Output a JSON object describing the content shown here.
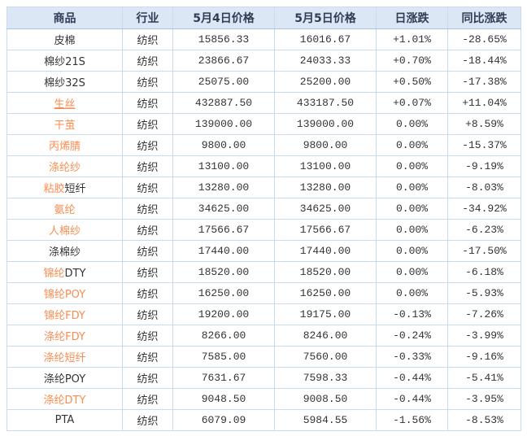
{
  "table": {
    "columns": [
      {
        "label": "商品"
      },
      {
        "label": "行业"
      },
      {
        "label": "5月4日价格"
      },
      {
        "label": "5月5日价格"
      },
      {
        "label": "日涨跌"
      },
      {
        "label": "同比涨跌"
      }
    ],
    "rows": [
      {
        "name_link": "",
        "name_plain": "皮棉",
        "underline": false,
        "industry": "纺织",
        "price_may4": "15856.33",
        "price_may5": "16016.67",
        "day_change": "+1.01%",
        "day_trend": "up",
        "yoy_change": "-28.65%",
        "yoy_trend": "down"
      },
      {
        "name_link": "",
        "name_plain": "棉纱21S",
        "underline": false,
        "industry": "纺织",
        "price_may4": "23866.67",
        "price_may5": "24033.33",
        "day_change": "+0.70%",
        "day_trend": "up",
        "yoy_change": "-18.44%",
        "yoy_trend": "down"
      },
      {
        "name_link": "",
        "name_plain": "棉纱32S",
        "underline": false,
        "industry": "纺织",
        "price_may4": "25075.00",
        "price_may5": "25200.00",
        "day_change": "+0.50%",
        "day_trend": "up",
        "yoy_change": "-17.38%",
        "yoy_trend": "down"
      },
      {
        "name_link": "生丝",
        "name_plain": "",
        "underline": true,
        "industry": "纺织",
        "price_may4": "432887.50",
        "price_may5": "433187.50",
        "day_change": "+0.07%",
        "day_trend": "up",
        "yoy_change": "+11.04%",
        "yoy_trend": "up"
      },
      {
        "name_link": "干茧",
        "name_plain": "",
        "underline": false,
        "industry": "纺织",
        "price_may4": "139000.00",
        "price_may5": "139000.00",
        "day_change": "0.00%",
        "day_trend": "flat",
        "yoy_change": "+8.59%",
        "yoy_trend": "up"
      },
      {
        "name_link": "丙烯腈",
        "name_plain": "",
        "underline": false,
        "industry": "纺织",
        "price_may4": "9800.00",
        "price_may5": "9800.00",
        "day_change": "0.00%",
        "day_trend": "flat",
        "yoy_change": "-15.37%",
        "yoy_trend": "down"
      },
      {
        "name_link": "涤纶纱",
        "name_plain": "",
        "underline": false,
        "industry": "纺织",
        "price_may4": "13100.00",
        "price_may5": "13100.00",
        "day_change": "0.00%",
        "day_trend": "flat",
        "yoy_change": "-9.19%",
        "yoy_trend": "down"
      },
      {
        "name_link": "粘胶",
        "name_plain": "短纤",
        "underline": false,
        "industry": "纺织",
        "price_may4": "13280.00",
        "price_may5": "13280.00",
        "day_change": "0.00%",
        "day_trend": "flat",
        "yoy_change": "-8.03%",
        "yoy_trend": "down"
      },
      {
        "name_link": "氨纶",
        "name_plain": "",
        "underline": false,
        "industry": "纺织",
        "price_may4": "34625.00",
        "price_may5": "34625.00",
        "day_change": "0.00%",
        "day_trend": "flat",
        "yoy_change": "-34.92%",
        "yoy_trend": "down"
      },
      {
        "name_link": "人棉纱",
        "name_plain": "",
        "underline": false,
        "industry": "纺织",
        "price_may4": "17566.67",
        "price_may5": "17566.67",
        "day_change": "0.00%",
        "day_trend": "flat",
        "yoy_change": "-6.23%",
        "yoy_trend": "down"
      },
      {
        "name_link": "",
        "name_plain": "涤棉纱",
        "underline": false,
        "industry": "纺织",
        "price_may4": "17440.00",
        "price_may5": "17440.00",
        "day_change": "0.00%",
        "day_trend": "flat",
        "yoy_change": "-17.50%",
        "yoy_trend": "down"
      },
      {
        "name_link": "锦纶",
        "name_plain": "DTY",
        "underline": false,
        "industry": "纺织",
        "price_may4": "18520.00",
        "price_may5": "18520.00",
        "day_change": "0.00%",
        "day_trend": "flat",
        "yoy_change": "-6.18%",
        "yoy_trend": "down"
      },
      {
        "name_link": "锦纶POY",
        "name_plain": "",
        "underline": false,
        "industry": "纺织",
        "price_may4": "16250.00",
        "price_may5": "16250.00",
        "day_change": "0.00%",
        "day_trend": "flat",
        "yoy_change": "-5.93%",
        "yoy_trend": "down"
      },
      {
        "name_link": "锦纶FDY",
        "name_plain": "",
        "underline": false,
        "industry": "纺织",
        "price_may4": "19200.00",
        "price_may5": "19175.00",
        "day_change": "-0.13%",
        "day_trend": "down",
        "yoy_change": "-7.26%",
        "yoy_trend": "down"
      },
      {
        "name_link": "涤纶FDY",
        "name_plain": "",
        "underline": false,
        "industry": "纺织",
        "price_may4": "8266.00",
        "price_may5": "8246.00",
        "day_change": "-0.24%",
        "day_trend": "down",
        "yoy_change": "-3.99%",
        "yoy_trend": "down"
      },
      {
        "name_link": "涤纶短纤",
        "name_plain": "",
        "underline": false,
        "industry": "纺织",
        "price_may4": "7585.00",
        "price_may5": "7560.00",
        "day_change": "-0.33%",
        "day_trend": "down",
        "yoy_change": "-9.16%",
        "yoy_trend": "down"
      },
      {
        "name_link": "",
        "name_plain": "涤纶POY",
        "underline": false,
        "industry": "纺织",
        "price_may4": "7631.67",
        "price_may5": "7598.33",
        "day_change": "-0.44%",
        "day_trend": "down",
        "yoy_change": "-5.41%",
        "yoy_trend": "down"
      },
      {
        "name_link": "涤纶DTY",
        "name_plain": "",
        "underline": false,
        "industry": "纺织",
        "price_may4": "9048.50",
        "price_may5": "9008.50",
        "day_change": "-0.44%",
        "day_trend": "down",
        "yoy_change": "-3.95%",
        "yoy_trend": "down"
      },
      {
        "name_link": "",
        "name_plain": "PTA",
        "underline": false,
        "industry": "纺织",
        "price_may4": "6079.09",
        "price_may5": "5984.55",
        "day_change": "-1.56%",
        "day_trend": "down",
        "yoy_change": "-8.53%",
        "yoy_trend": "down"
      }
    ]
  },
  "colors": {
    "page_bg": "#ffffff",
    "header_bg": "#dce7f6",
    "header_text": "#333b55",
    "border": "#c9dbf2",
    "outer_border": "#a9c4e6",
    "link_orange": "#fb8c50",
    "up_red": "#ff0000",
    "down_green": "#008800",
    "flat_gray": "#404040",
    "text_dark": "#333333"
  }
}
